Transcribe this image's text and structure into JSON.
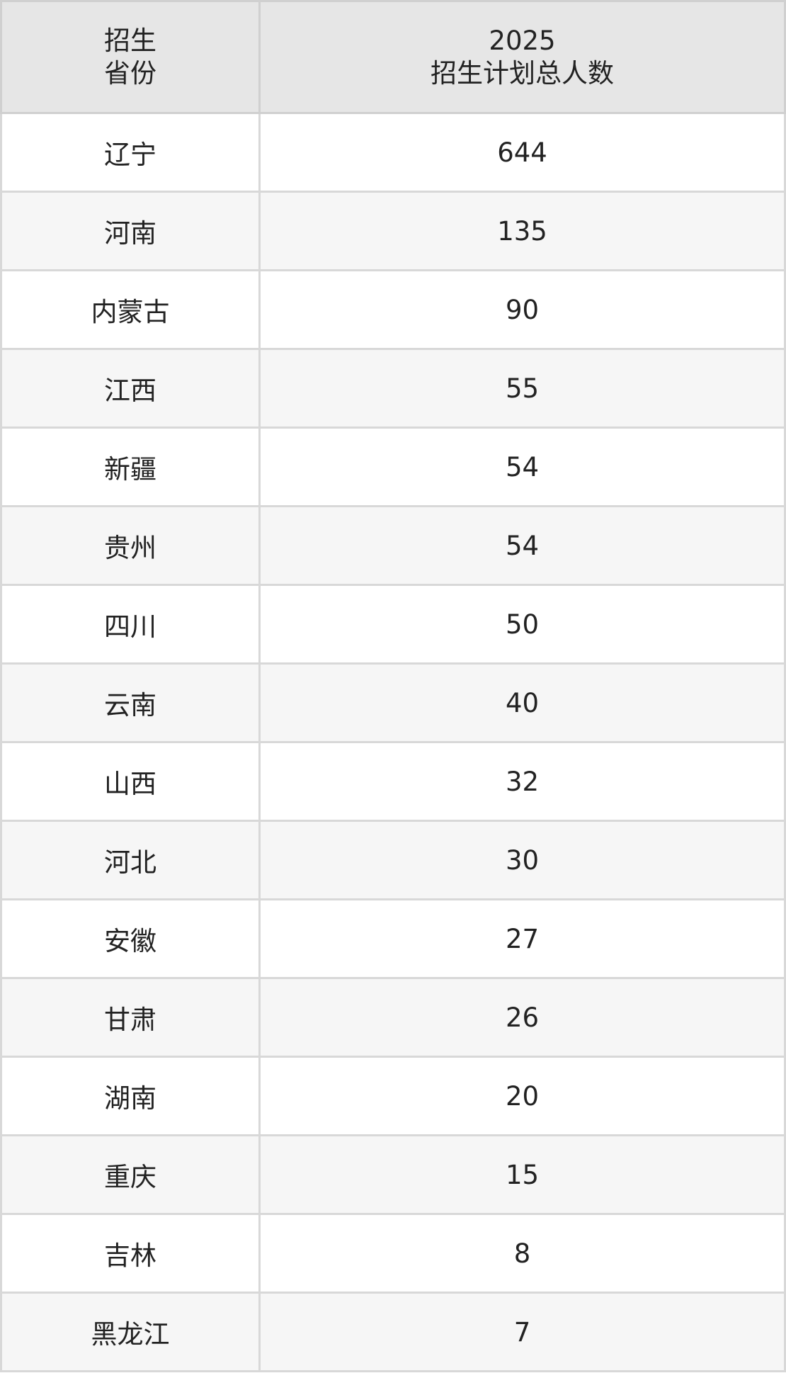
{
  "table": {
    "headers": {
      "province_line1": "招生",
      "province_line2": "省份",
      "total_line1": "2025",
      "total_line2": "招生计划总人数"
    },
    "rows": [
      {
        "province": "辽宁",
        "total": "644"
      },
      {
        "province": "河南",
        "total": "135"
      },
      {
        "province": "内蒙古",
        "total": "90"
      },
      {
        "province": "江西",
        "total": "55"
      },
      {
        "province": "新疆",
        "total": "54"
      },
      {
        "province": "贵州",
        "total": "54"
      },
      {
        "province": "四川",
        "total": "50"
      },
      {
        "province": "云南",
        "total": "40"
      },
      {
        "province": "山西",
        "total": "32"
      },
      {
        "province": "河北",
        "total": "30"
      },
      {
        "province": "安徽",
        "total": "27"
      },
      {
        "province": "甘肃",
        "total": "26"
      },
      {
        "province": "湖南",
        "total": "20"
      },
      {
        "province": "重庆",
        "total": "15"
      },
      {
        "province": "吉林",
        "total": "8"
      },
      {
        "province": "黑龙江",
        "total": "7"
      }
    ]
  }
}
